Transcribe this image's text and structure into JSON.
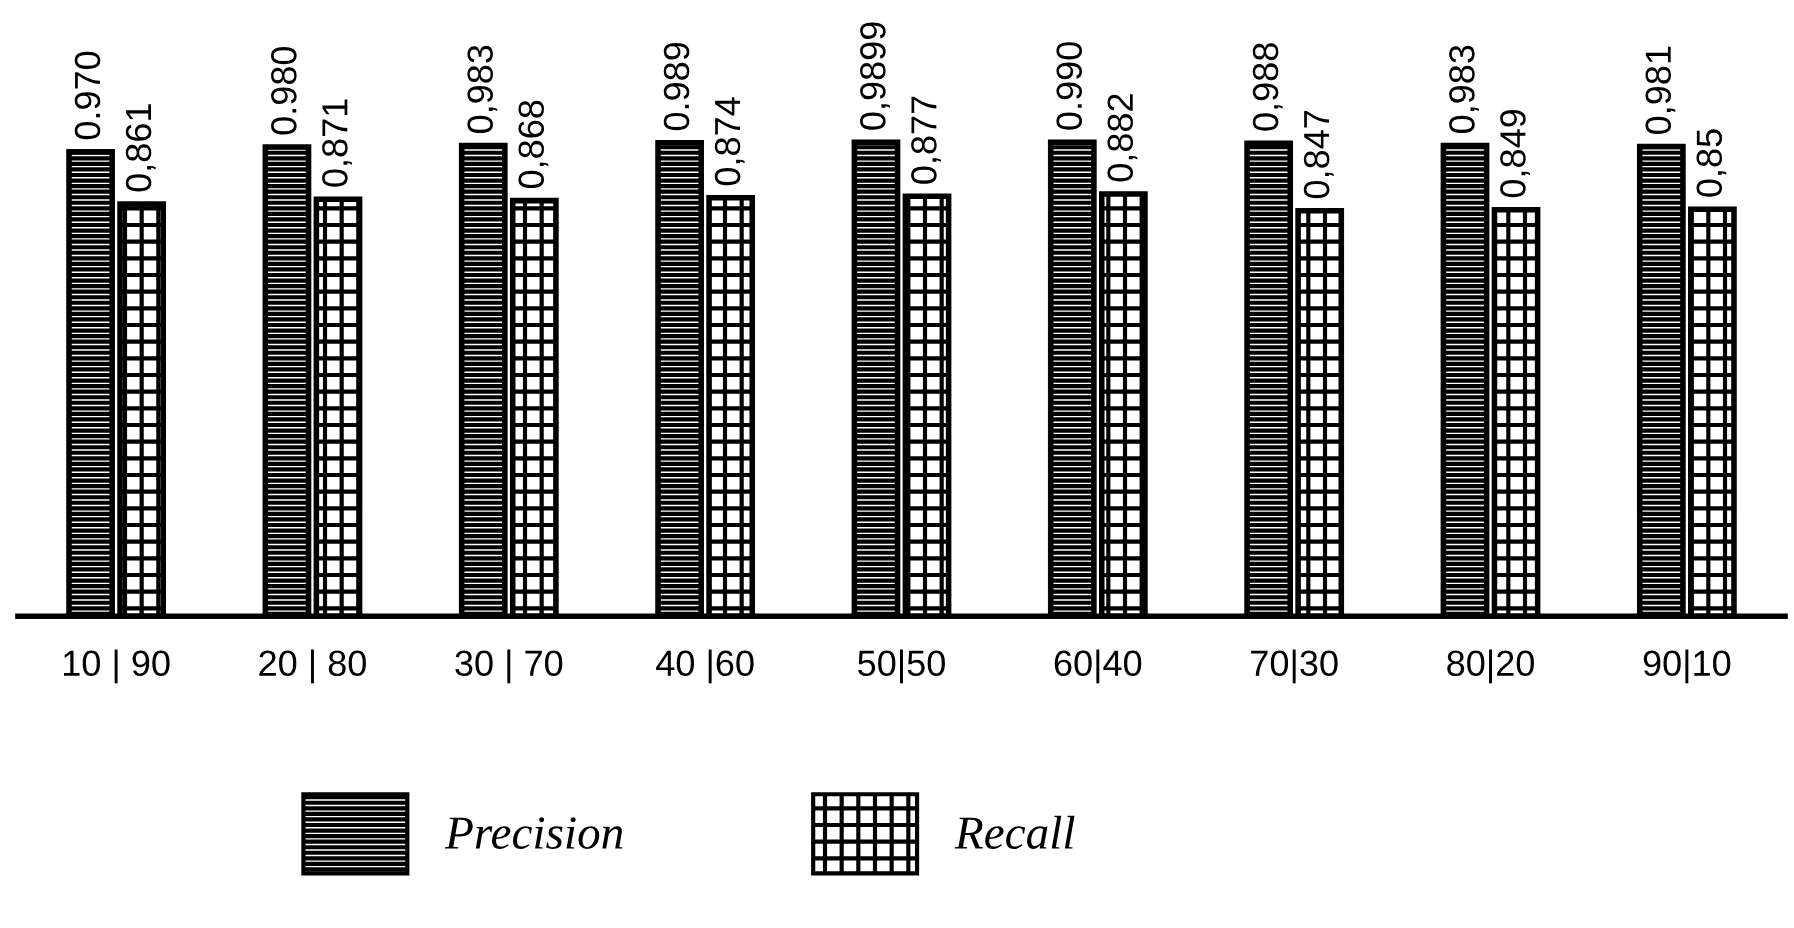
{
  "chart_data": {
    "type": "bar",
    "categories": [
      "10 | 90",
      "20 | 80",
      "30 | 70",
      "40 |60",
      "50|50",
      "60|40",
      "70|30",
      "80|20",
      "90|10"
    ],
    "legend": "bottom",
    "series": [
      {
        "name": "Precision",
        "color": "#000000",
        "values": [
          0.97,
          0.98,
          0.983,
          0.989,
          0.9899,
          0.99,
          0.988,
          0.983,
          0.981
        ],
        "value_labels": [
          "0.970",
          "0.980",
          "0,983",
          "0.989",
          "0,9899",
          "0.990",
          "0,988",
          "0,983",
          "0,981"
        ]
      },
      {
        "name": "Recall",
        "color": "#000000",
        "values": [
          0.861,
          0.871,
          0.868,
          0.874,
          0.877,
          0.882,
          0.847,
          0.849,
          0.85
        ],
        "value_labels": [
          "0,861",
          "0,871",
          "0,868",
          "0,874",
          "0,877",
          "0,882",
          "0,847",
          "0,849",
          "0,85"
        ]
      }
    ]
  }
}
